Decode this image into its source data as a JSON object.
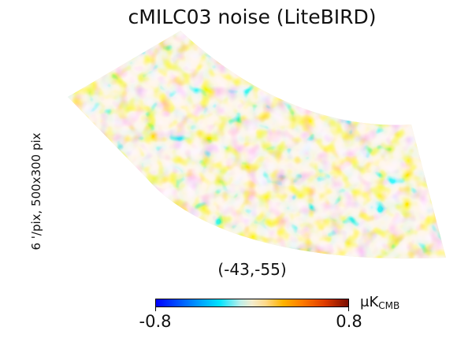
{
  "title": "cMILC03 noise (LiteBIRD)",
  "side_label": "6 '/pix,   500x300 pix",
  "coord_label": "(-43,-55)",
  "colorbar": {
    "min": "-0.8",
    "max": "0.8",
    "unit_main": "μK",
    "unit_sub": "CMB",
    "colors": [
      "#0000ff",
      "#00a8ff",
      "#00e3ff",
      "#f3eccd",
      "#ffb300",
      "#ff7b00",
      "#7a0c00"
    ]
  },
  "map": {
    "projection": "gnomonic-sky-patch",
    "field": "noise",
    "background_color": "#f3eccd"
  }
}
